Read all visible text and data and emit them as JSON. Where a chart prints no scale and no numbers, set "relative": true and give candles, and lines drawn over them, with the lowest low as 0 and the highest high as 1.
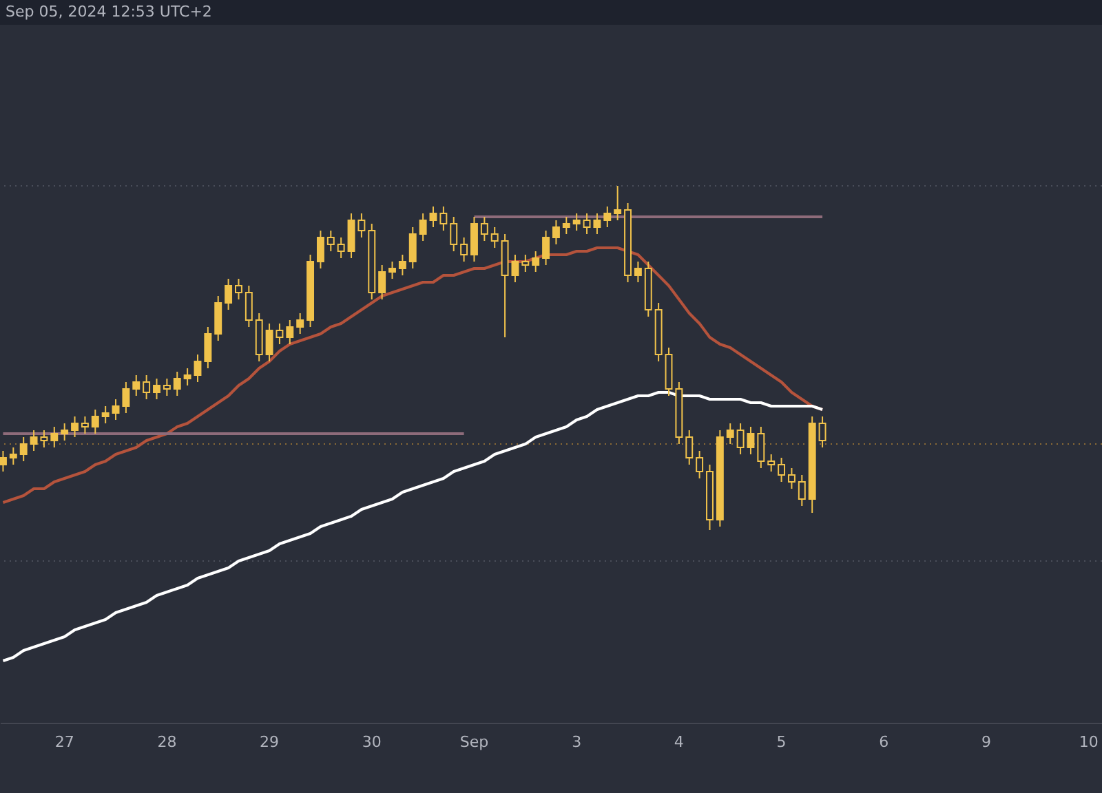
{
  "chart_data": {
    "type": "candlestick",
    "relative": true,
    "color": "#f0c24b",
    "annotations": [
      "Sep 05, 2024 12:53 UTC+2"
    ],
    "grid": false,
    "categories": [
      null,
      null,
      null,
      null,
      null,
      null,
      "27",
      null,
      null,
      null,
      null,
      null,
      null,
      null,
      null,
      null,
      "28",
      null,
      null,
      null,
      null,
      null,
      null,
      null,
      null,
      null,
      "29",
      null,
      null,
      null,
      null,
      null,
      null,
      null,
      null,
      null,
      "30",
      null,
      null,
      null,
      null,
      null,
      null,
      null,
      null,
      null,
      "Sep",
      null,
      null,
      null,
      null,
      null,
      null,
      null,
      null,
      null,
      "3",
      null,
      null,
      null,
      null,
      null,
      null,
      null,
      null,
      null,
      "4",
      null,
      null,
      null,
      null,
      null,
      null,
      null,
      null,
      null,
      "5",
      null,
      null,
      null,
      null,
      null,
      null,
      null,
      null,
      null,
      "6",
      null,
      null,
      null,
      null,
      null,
      null,
      null,
      null,
      null,
      "9",
      null,
      null,
      null,
      null,
      null,
      null,
      null,
      null,
      null,
      "10",
      null
    ],
    "ohlc": [
      [
        0.19,
        0.23,
        0.17,
        0.21
      ],
      [
        0.21,
        0.24,
        0.19,
        0.22
      ],
      [
        0.22,
        0.27,
        0.2,
        0.25
      ],
      [
        0.25,
        0.29,
        0.23,
        0.27
      ],
      [
        0.27,
        0.29,
        0.24,
        0.26
      ],
      [
        0.26,
        0.3,
        0.24,
        0.28
      ],
      [
        0.28,
        0.31,
        0.26,
        0.29
      ],
      [
        0.29,
        0.33,
        0.27,
        0.31
      ],
      [
        0.31,
        0.33,
        0.28,
        0.3
      ],
      [
        0.3,
        0.35,
        0.28,
        0.33
      ],
      [
        0.33,
        0.36,
        0.31,
        0.34
      ],
      [
        0.34,
        0.38,
        0.32,
        0.36
      ],
      [
        0.36,
        0.43,
        0.34,
        0.41
      ],
      [
        0.41,
        0.45,
        0.39,
        0.43
      ],
      [
        0.43,
        0.45,
        0.38,
        0.4
      ],
      [
        0.4,
        0.44,
        0.38,
        0.42
      ],
      [
        0.42,
        0.44,
        0.39,
        0.41
      ],
      [
        0.41,
        0.46,
        0.39,
        0.44
      ],
      [
        0.44,
        0.47,
        0.42,
        0.45
      ],
      [
        0.45,
        0.51,
        0.43,
        0.49
      ],
      [
        0.49,
        0.59,
        0.47,
        0.57
      ],
      [
        0.57,
        0.68,
        0.55,
        0.66
      ],
      [
        0.66,
        0.73,
        0.64,
        0.71
      ],
      [
        0.71,
        0.73,
        0.67,
        0.69
      ],
      [
        0.69,
        0.71,
        0.59,
        0.61
      ],
      [
        0.61,
        0.63,
        0.49,
        0.51
      ],
      [
        0.51,
        0.6,
        0.49,
        0.58
      ],
      [
        0.58,
        0.6,
        0.54,
        0.56
      ],
      [
        0.56,
        0.61,
        0.54,
        0.59
      ],
      [
        0.59,
        0.63,
        0.57,
        0.61
      ],
      [
        0.61,
        0.8,
        0.59,
        0.78
      ],
      [
        0.78,
        0.87,
        0.76,
        0.85
      ],
      [
        0.85,
        0.87,
        0.81,
        0.83
      ],
      [
        0.83,
        0.85,
        0.79,
        0.81
      ],
      [
        0.81,
        0.92,
        0.79,
        0.9
      ],
      [
        0.9,
        0.92,
        0.85,
        0.87
      ],
      [
        0.87,
        0.89,
        0.67,
        0.69
      ],
      [
        0.69,
        0.77,
        0.67,
        0.75
      ],
      [
        0.75,
        0.78,
        0.73,
        0.76
      ],
      [
        0.76,
        0.8,
        0.74,
        0.78
      ],
      [
        0.78,
        0.88,
        0.76,
        0.86
      ],
      [
        0.86,
        0.92,
        0.84,
        0.9
      ],
      [
        0.9,
        0.94,
        0.88,
        0.92
      ],
      [
        0.92,
        0.94,
        0.87,
        0.89
      ],
      [
        0.89,
        0.91,
        0.81,
        0.83
      ],
      [
        0.83,
        0.85,
        0.78,
        0.8
      ],
      [
        0.8,
        0.91,
        0.78,
        0.89
      ],
      [
        0.89,
        0.91,
        0.84,
        0.86
      ],
      [
        0.86,
        0.88,
        0.82,
        0.84
      ],
      [
        0.84,
        0.86,
        0.56,
        0.74
      ],
      [
        0.74,
        0.8,
        0.72,
        0.78
      ],
      [
        0.78,
        0.8,
        0.75,
        0.77
      ],
      [
        0.77,
        0.81,
        0.75,
        0.79
      ],
      [
        0.79,
        0.87,
        0.77,
        0.85
      ],
      [
        0.85,
        0.9,
        0.83,
        0.88
      ],
      [
        0.88,
        0.91,
        0.86,
        0.89
      ],
      [
        0.89,
        0.92,
        0.87,
        0.9
      ],
      [
        0.9,
        0.92,
        0.86,
        0.88
      ],
      [
        0.88,
        0.92,
        0.86,
        0.9
      ],
      [
        0.9,
        0.94,
        0.88,
        0.92
      ],
      [
        0.92,
        1.0,
        0.9,
        0.93
      ],
      [
        0.93,
        0.95,
        0.72,
        0.74
      ],
      [
        0.74,
        0.78,
        0.72,
        0.76
      ],
      [
        0.76,
        0.78,
        0.62,
        0.64
      ],
      [
        0.64,
        0.66,
        0.49,
        0.51
      ],
      [
        0.51,
        0.53,
        0.39,
        0.41
      ],
      [
        0.41,
        0.43,
        0.25,
        0.27
      ],
      [
        0.27,
        0.29,
        0.19,
        0.21
      ],
      [
        0.21,
        0.23,
        0.15,
        0.17
      ],
      [
        0.17,
        0.19,
        0.0,
        0.03
      ],
      [
        0.03,
        0.29,
        0.01,
        0.27
      ],
      [
        0.27,
        0.31,
        0.25,
        0.29
      ],
      [
        0.29,
        0.31,
        0.22,
        0.24
      ],
      [
        0.24,
        0.3,
        0.22,
        0.28
      ],
      [
        0.28,
        0.3,
        0.18,
        0.2
      ],
      [
        0.2,
        0.22,
        0.17,
        0.19
      ],
      [
        0.19,
        0.21,
        0.14,
        0.16
      ],
      [
        0.16,
        0.18,
        0.12,
        0.14
      ],
      [
        0.14,
        0.16,
        0.07,
        0.09
      ],
      [
        0.09,
        0.33,
        0.05,
        0.31
      ],
      [
        0.31,
        0.33,
        0.24,
        0.26
      ],
      null,
      null,
      null,
      null,
      null,
      null,
      null,
      null,
      null,
      null,
      null,
      null,
      null,
      null,
      null,
      null,
      null,
      null,
      null,
      null,
      null,
      null,
      null,
      null,
      null,
      null,
      null
    ],
    "series": [
      {
        "type": "line",
        "color": "#b5533c",
        "values": [
          0.08,
          0.09,
          0.1,
          0.12,
          0.12,
          0.14,
          0.15,
          0.16,
          0.17,
          0.19,
          0.2,
          0.22,
          0.23,
          0.24,
          0.26,
          0.27,
          0.28,
          0.3,
          0.31,
          0.33,
          0.35,
          0.37,
          0.39,
          0.42,
          0.44,
          0.47,
          0.49,
          0.52,
          0.54,
          0.55,
          0.56,
          0.57,
          0.59,
          0.6,
          0.62,
          0.64,
          0.66,
          0.68,
          0.69,
          0.7,
          0.71,
          0.72,
          0.72,
          0.74,
          0.74,
          0.75,
          0.76,
          0.76,
          0.77,
          0.78,
          0.78,
          0.78,
          0.79,
          0.8,
          0.8,
          0.8,
          0.81,
          0.81,
          0.82,
          0.82,
          0.82,
          0.81,
          0.8,
          0.77,
          0.74,
          0.71,
          0.67,
          0.63,
          0.6,
          0.56,
          0.54,
          0.53,
          0.51,
          0.49,
          0.47,
          0.45,
          0.43,
          0.4,
          0.38,
          0.36,
          0.35,
          null,
          null,
          null,
          null,
          null,
          null,
          null,
          null,
          null,
          null,
          null,
          null,
          null,
          null,
          null,
          null,
          null,
          null,
          null,
          null,
          null,
          null,
          null,
          null,
          null,
          null,
          null
        ]
      },
      {
        "type": "line",
        "color": "#ffffff",
        "values": [
          -0.38,
          -0.37,
          -0.35,
          -0.34,
          -0.33,
          -0.32,
          -0.31,
          -0.29,
          -0.28,
          -0.27,
          -0.26,
          -0.24,
          -0.23,
          -0.22,
          -0.21,
          -0.19,
          -0.18,
          -0.17,
          -0.16,
          -0.14,
          -0.13,
          -0.12,
          -0.11,
          -0.09,
          -0.08,
          -0.07,
          -0.06,
          -0.04,
          -0.03,
          -0.02,
          -0.01,
          0.01,
          0.02,
          0.03,
          0.04,
          0.06,
          0.07,
          0.08,
          0.09,
          0.11,
          0.12,
          0.13,
          0.14,
          0.15,
          0.17,
          0.18,
          0.19,
          0.2,
          0.22,
          0.23,
          0.24,
          0.25,
          0.27,
          0.28,
          0.29,
          0.3,
          0.32,
          0.33,
          0.35,
          0.36,
          0.37,
          0.38,
          0.39,
          0.39,
          0.4,
          0.4,
          0.39,
          0.39,
          0.39,
          0.38,
          0.38,
          0.38,
          0.38,
          0.37,
          0.37,
          0.36,
          0.36,
          0.36,
          0.36,
          0.36,
          0.35,
          null,
          null,
          null,
          null,
          null,
          null,
          null,
          null,
          null,
          null,
          null,
          null,
          null,
          null,
          null,
          null,
          null,
          null,
          null,
          null,
          null,
          null,
          null,
          null,
          null,
          null,
          null
        ]
      },
      {
        "type": "line",
        "color": "#8e6b7a",
        "values": [
          null,
          null,
          null,
          null,
          null,
          null,
          null,
          null,
          null,
          null,
          null,
          null,
          null,
          null,
          null,
          null,
          null,
          null,
          null,
          null,
          null,
          null,
          null,
          null,
          null,
          null,
          null,
          null,
          null,
          null,
          null,
          null,
          null,
          null,
          null,
          null,
          null,
          null,
          null,
          null,
          null,
          null,
          null,
          null,
          null,
          null,
          0.91,
          0.91,
          0.91,
          0.91,
          0.91,
          0.91,
          0.91,
          0.91,
          0.91,
          0.91,
          0.91,
          0.91,
          0.91,
          0.91,
          0.91,
          0.91,
          0.91,
          0.91,
          0.91,
          0.91,
          0.91,
          0.91,
          0.91,
          0.91,
          0.91,
          0.91,
          0.91,
          0.91,
          0.91,
          0.91,
          0.91,
          0.91,
          0.91,
          0.91,
          0.91,
          null,
          null,
          null,
          null,
          null,
          null,
          null,
          null,
          null,
          null,
          null,
          null,
          null,
          null,
          null,
          null,
          null,
          null,
          null,
          null,
          null,
          null,
          null,
          null,
          null,
          null,
          null
        ]
      },
      {
        "type": "line",
        "color": "#8e6b7a",
        "values": [
          0.28,
          0.28,
          0.28,
          0.28,
          0.28,
          0.28,
          0.28,
          0.28,
          0.28,
          0.28,
          0.28,
          0.28,
          0.28,
          0.28,
          0.28,
          0.28,
          0.28,
          0.28,
          0.28,
          0.28,
          0.28,
          0.28,
          0.28,
          0.28,
          0.28,
          0.28,
          0.28,
          0.28,
          0.28,
          0.28,
          0.28,
          0.28,
          0.28,
          0.28,
          0.28,
          0.28,
          0.28,
          0.28,
          0.28,
          0.28,
          0.28,
          0.28,
          0.28,
          0.28,
          0.28,
          0.28,
          null,
          null,
          null,
          null,
          null,
          null,
          null,
          null,
          null,
          null,
          null,
          null,
          null,
          null,
          null,
          null,
          null,
          null,
          null,
          null,
          null,
          null,
          null,
          null,
          null,
          null,
          null,
          null,
          null,
          null,
          null,
          null,
          null,
          null,
          null,
          null,
          null,
          null,
          null,
          null,
          null,
          null,
          null,
          null,
          null,
          null,
          null,
          null,
          null,
          null,
          null,
          null,
          null,
          null,
          null,
          null,
          null,
          null,
          null,
          null,
          null,
          null
        ]
      }
    ],
    "ref_lines": [
      {
        "axis": "y",
        "value": 1.0,
        "color": "#4a4e5a",
        "line_style": "dotted"
      },
      {
        "axis": "y",
        "value": 0.25,
        "color": "#8a6a35",
        "line_style": "dotted"
      },
      {
        "axis": "y",
        "value": -0.09,
        "color": "#4a4e5a",
        "line_style": "dotted"
      }
    ]
  }
}
